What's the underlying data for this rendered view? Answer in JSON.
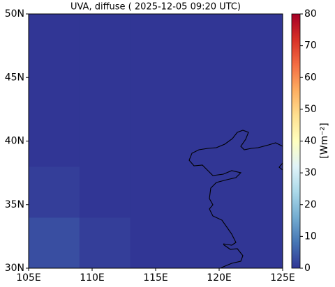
{
  "chart_data": {
    "type": "map",
    "title": "UVA, diffuse ( 2025-12-05 09:20 UTC)",
    "lon_edges": [
      105,
      109,
      113,
      117,
      121,
      125
    ],
    "lat_edges": [
      30,
      34,
      38,
      42,
      46,
      50
    ],
    "values": [
      [
        3,
        1,
        0,
        0,
        0
      ],
      [
        1,
        0,
        0,
        0,
        0
      ],
      [
        0,
        0,
        0,
        0,
        0
      ],
      [
        0,
        0,
        0,
        0,
        0
      ],
      [
        0,
        0,
        0,
        0,
        0
      ]
    ],
    "xlim": [
      105,
      125
    ],
    "ylim": [
      30,
      50
    ],
    "xticks": [
      {
        "value": 105,
        "label": "105E"
      },
      {
        "value": 110,
        "label": "110E"
      },
      {
        "value": 115,
        "label": "115E"
      },
      {
        "value": 120,
        "label": "120E"
      },
      {
        "value": 125,
        "label": "125E"
      }
    ],
    "yticks": [
      {
        "value": 30,
        "label": "30N"
      },
      {
        "value": 35,
        "label": "35N"
      },
      {
        "value": 40,
        "label": "40N"
      },
      {
        "value": 45,
        "label": "45N"
      },
      {
        "value": 50,
        "label": "50N"
      }
    ],
    "colorbar": {
      "label": "[Wm⁻²]",
      "clim": [
        0,
        80
      ],
      "ticks": [
        0,
        10,
        20,
        30,
        40,
        50,
        60,
        70,
        80
      ],
      "colors": [
        "#313695",
        "#4575b4",
        "#74add1",
        "#abd9e9",
        "#e0f3f8",
        "#ffffbf",
        "#fee090",
        "#fdae61",
        "#f46d43",
        "#d73027",
        "#a50026"
      ]
    }
  }
}
